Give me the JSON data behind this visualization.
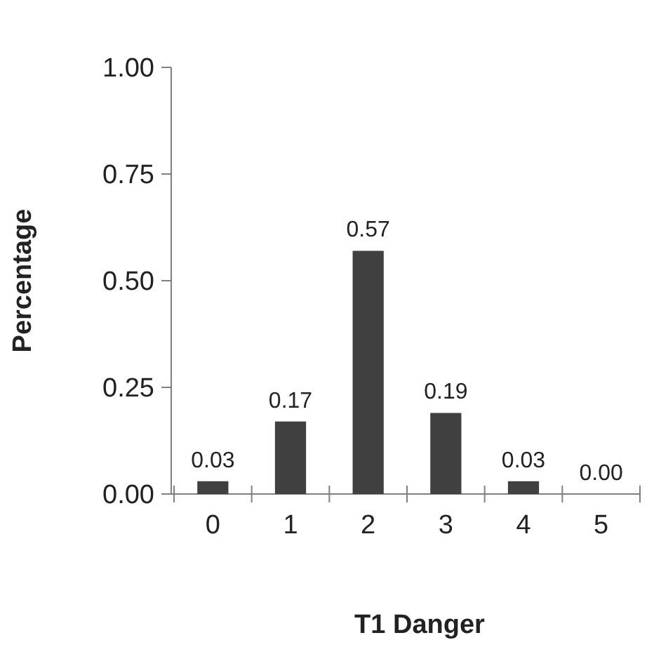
{
  "chart_data": {
    "type": "bar",
    "xlabel": "T1 Danger",
    "ylabel": "Percentage",
    "categories": [
      "0",
      "1",
      "2",
      "3",
      "4",
      "5"
    ],
    "values": [
      0.03,
      0.17,
      0.57,
      0.19,
      0.03,
      0.0
    ],
    "color": "#404040",
    "ylim": [
      0,
      1
    ],
    "yticks": [
      {
        "value": 0,
        "label": "0.00"
      },
      {
        "value": 0.25,
        "label": "0.25"
      },
      {
        "value": 0.5,
        "label": "0.50"
      },
      {
        "value": 0.75,
        "label": "0.75"
      },
      {
        "value": 1,
        "label": "1.00"
      }
    ],
    "value_labels": [
      "0.03",
      "0.17",
      "0.57",
      "0.19",
      "0.03",
      "0.00"
    ],
    "grid": false
  }
}
